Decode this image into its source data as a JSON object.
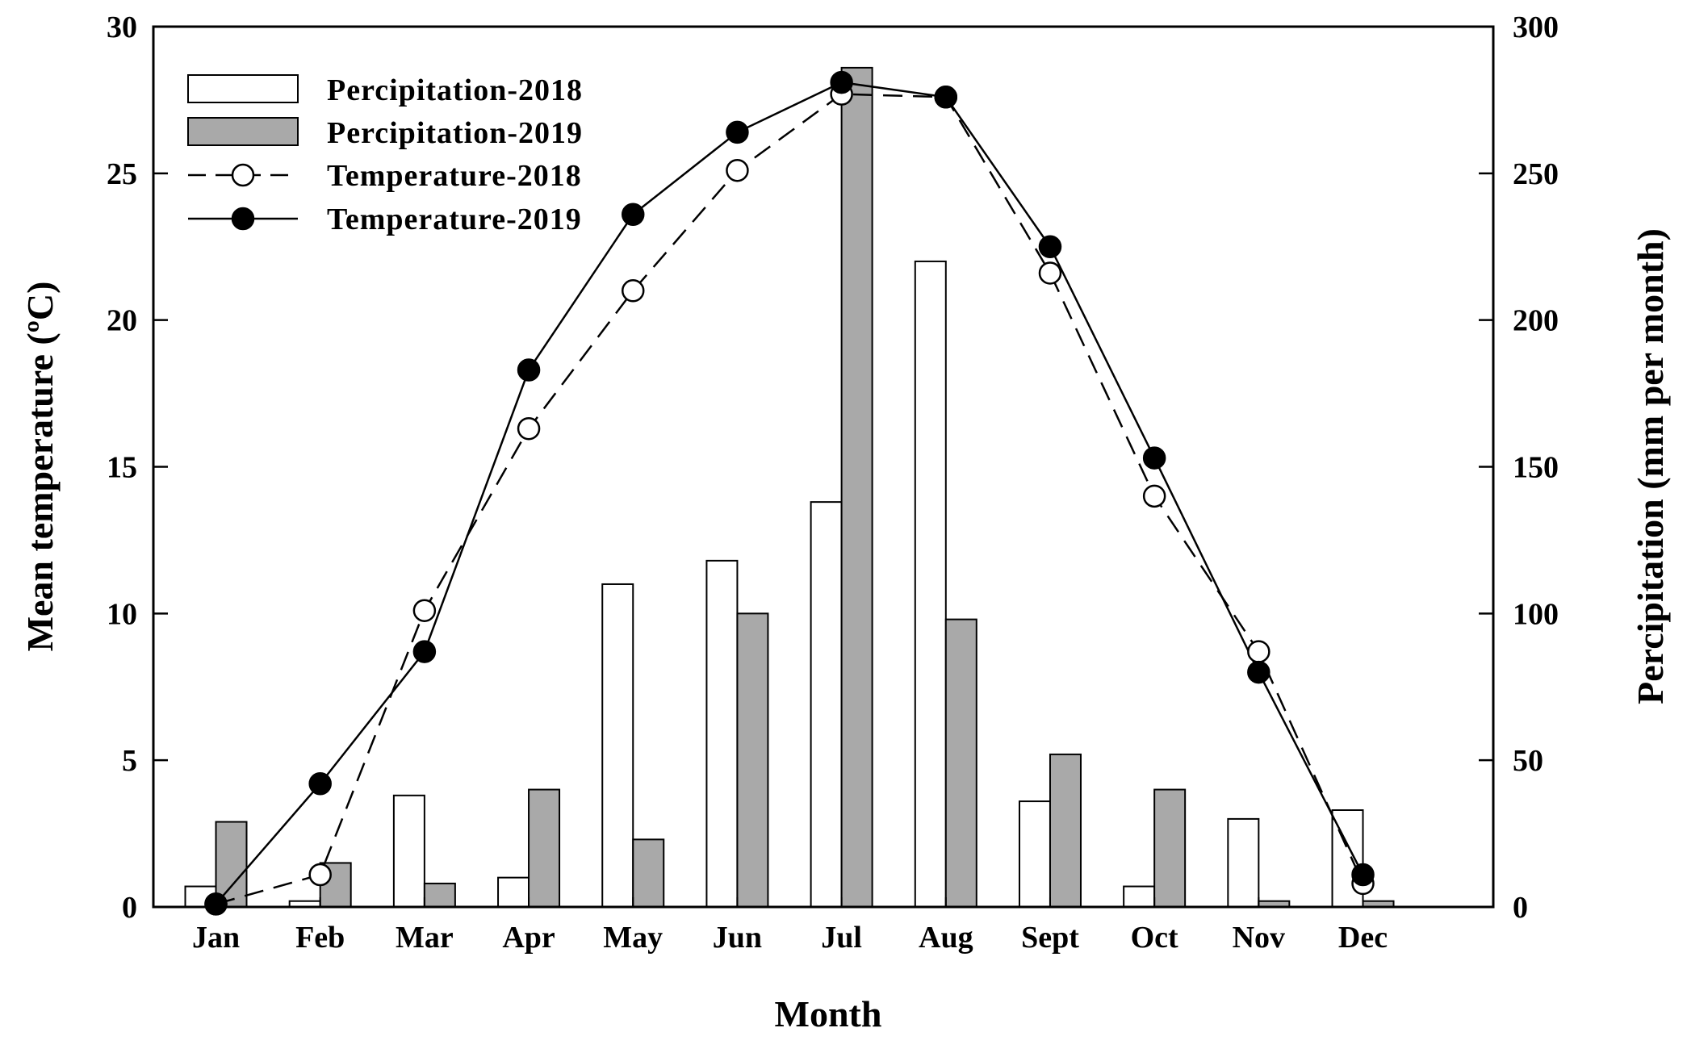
{
  "chart_data": {
    "type": "bar+line",
    "categories": [
      "Jan",
      "Feb",
      "Mar",
      "Apr",
      "May",
      "Jun",
      "Jul",
      "Aug",
      "Sept",
      "Oct",
      "Nov",
      "Dec"
    ],
    "xlabel": "Month",
    "ylabel_left": "Mean temperature (ºC)",
    "ylabel_right": "Percipitation (mm per month)",
    "ylim_left": [
      0,
      30
    ],
    "ylim_right": [
      0,
      300
    ],
    "yticks_left": [
      "0",
      "5",
      "10",
      "15",
      "20",
      "25",
      "30"
    ],
    "yticks_right": [
      "0",
      "50",
      "100",
      "150",
      "200",
      "250",
      "300"
    ],
    "grid": false,
    "legend_position": "top-left",
    "bar_series": [
      {
        "name": "Percipitation-2018",
        "fill": "#ffffff",
        "values": [
          7,
          2,
          38,
          10,
          110,
          118,
          138,
          220,
          36,
          7,
          30,
          33
        ]
      },
      {
        "name": "Percipitation-2019",
        "fill": "#a9a9a9",
        "values": [
          29,
          15,
          8,
          40,
          23,
          100,
          286,
          98,
          52,
          40,
          2,
          2
        ]
      }
    ],
    "line_series": [
      {
        "name": "Temperature-2018",
        "marker": "open-circle",
        "line": "dashed",
        "values": [
          0.1,
          1.1,
          10.1,
          16.3,
          21.0,
          25.1,
          27.7,
          27.6,
          21.6,
          14.0,
          8.7,
          0.8
        ]
      },
      {
        "name": "Temperature-2019",
        "marker": "filled-circle",
        "line": "solid",
        "values": [
          0.1,
          4.2,
          8.7,
          18.3,
          23.6,
          26.4,
          28.1,
          27.6,
          22.5,
          15.3,
          8.0,
          1.1
        ]
      }
    ]
  }
}
